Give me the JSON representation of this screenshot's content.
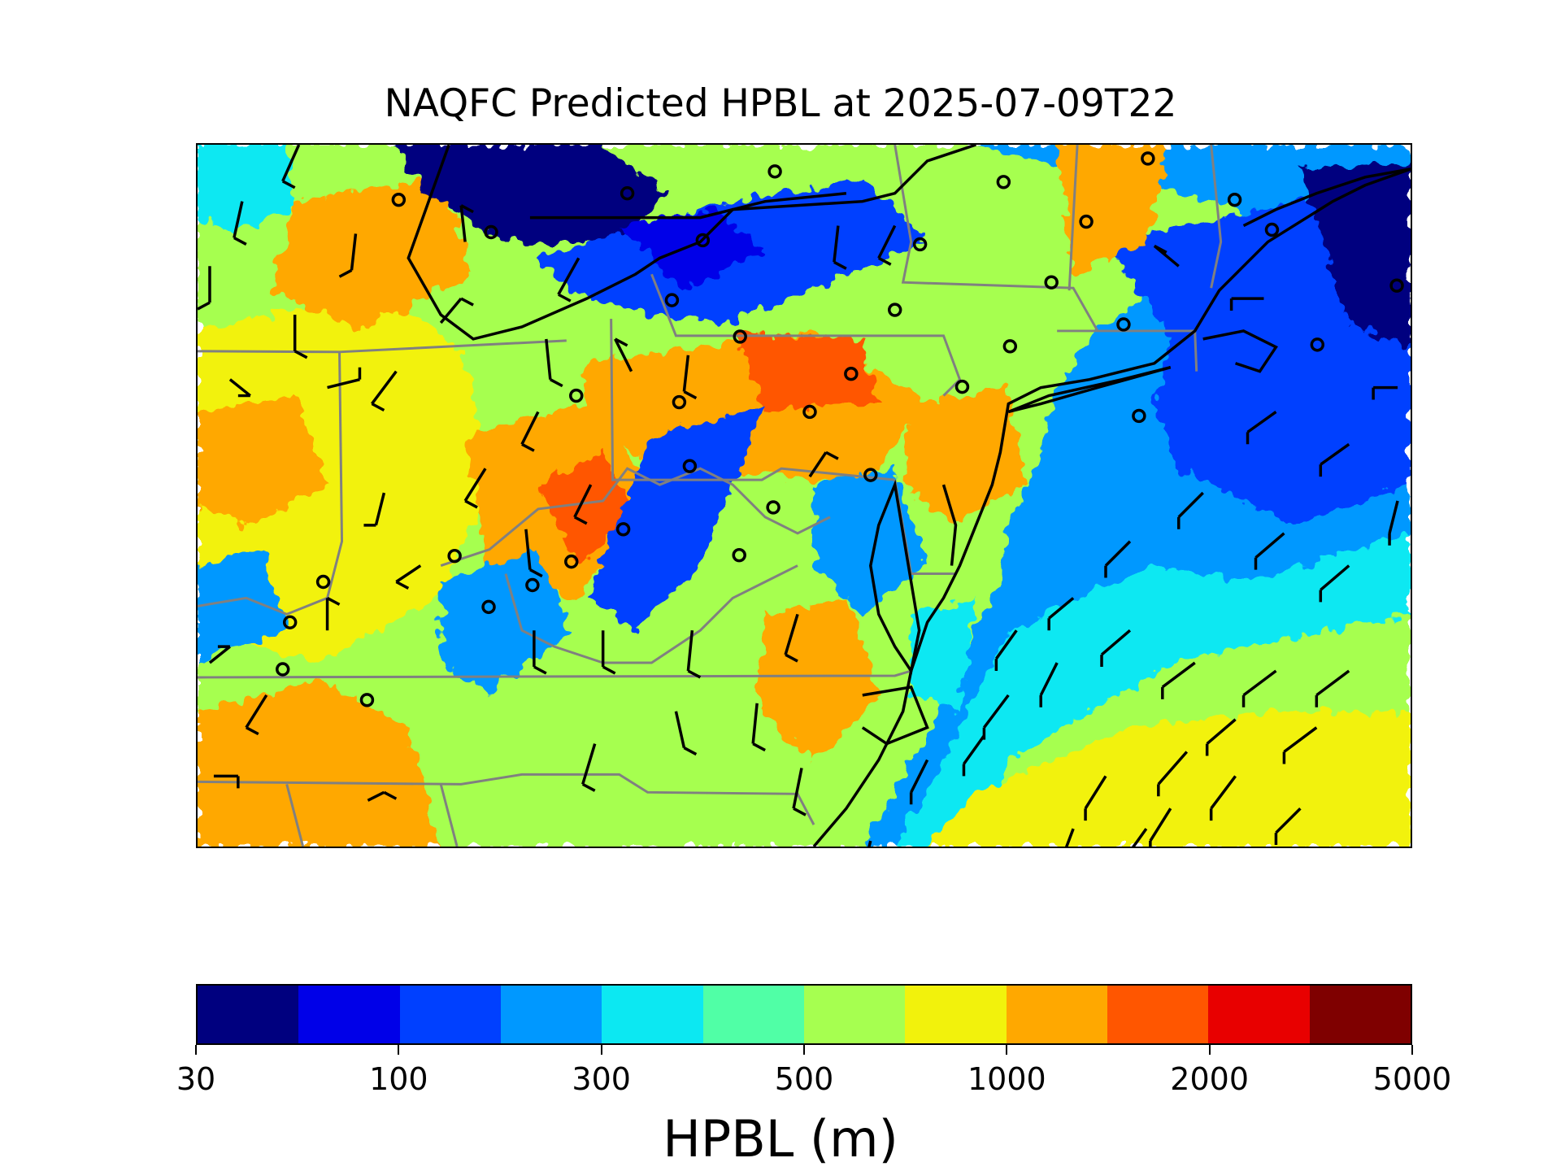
{
  "title": "NAQFC Predicted HPBL at 2025-07-09T22",
  "colorbar": {
    "label": "HPBL (m)",
    "tick_labels": [
      "30",
      "100",
      "300",
      "500",
      "1000",
      "2000",
      "5000"
    ],
    "colors": [
      "#00007f",
      "#0000e8",
      "#0040ff",
      "#0098ff",
      "#0ce8f2",
      "#50ffa6",
      "#a6ff50",
      "#f2f20c",
      "#ffa800",
      "#ff5600",
      "#e80000",
      "#7f0000"
    ]
  },
  "map": {
    "ocean_color": "#0098ff",
    "border_color": "#808080",
    "coast_color": "#000000",
    "marker": "circle-station",
    "wind_symbol": "wind-barb"
  }
}
